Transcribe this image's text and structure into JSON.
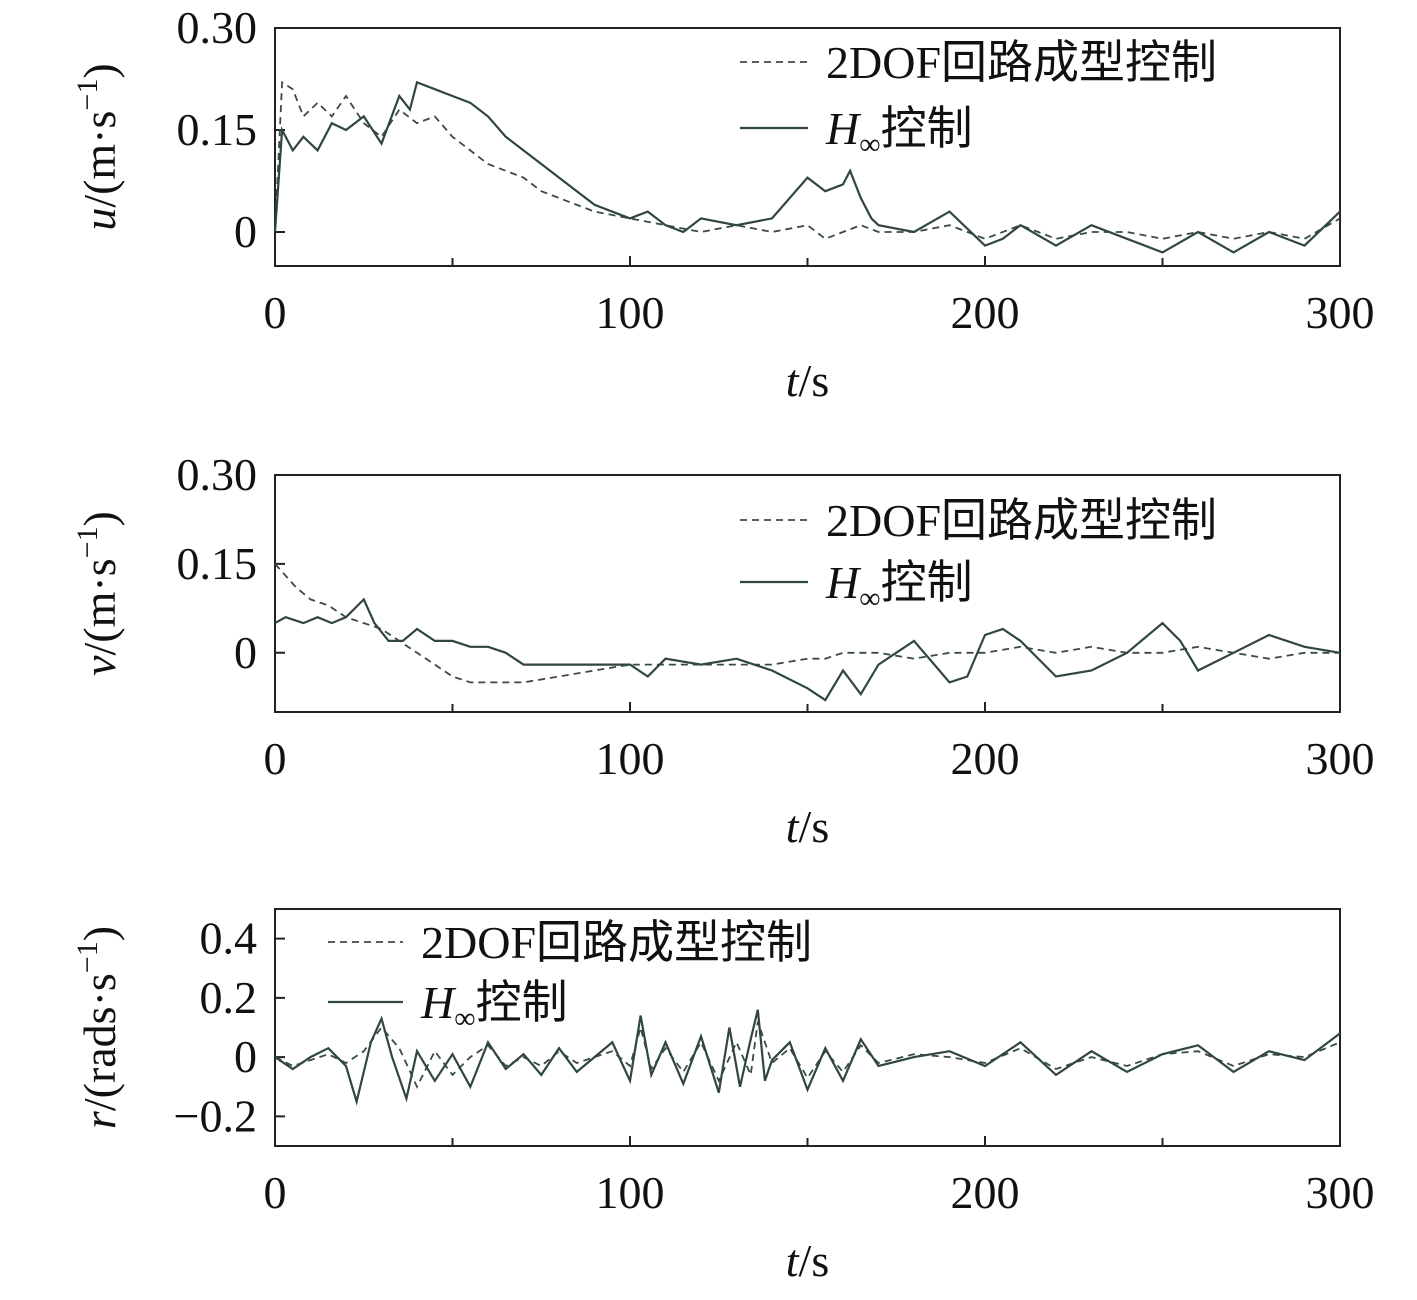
{
  "colors": {
    "series_dashed": "#3a4a48",
    "series_solid": "#2f4644",
    "axis": "#222222"
  },
  "chart_data": [
    {
      "type": "line",
      "ylabel_italic": "u",
      "ylabel_rest": "/(m·s",
      "ylabel_sup": "−1",
      "ylabel_close": ")",
      "xlabel_italic": "t",
      "xlabel_rest": "/s",
      "xlim": [
        0,
        300
      ],
      "ylim": [
        -0.05,
        0.3
      ],
      "xticks": [
        0,
        100,
        200,
        300
      ],
      "xtick_labels": [
        "0",
        "100",
        "200",
        "300"
      ],
      "yticks": [
        0,
        0.15,
        0.3
      ],
      "ytick_labels": [
        "0",
        "0.15",
        "0.30"
      ],
      "legend_position": "top-right",
      "series": [
        {
          "name": "2DOF回路成型控制",
          "style": "dashed",
          "x": [
            0,
            2,
            5,
            8,
            12,
            16,
            20,
            25,
            30,
            35,
            40,
            45,
            50,
            55,
            60,
            65,
            70,
            75,
            80,
            90,
            100,
            110,
            120,
            130,
            140,
            150,
            155,
            160,
            165,
            170,
            180,
            190,
            200,
            210,
            220,
            230,
            240,
            250,
            260,
            270,
            280,
            290,
            300
          ],
          "y": [
            0,
            0.22,
            0.21,
            0.17,
            0.19,
            0.17,
            0.2,
            0.16,
            0.14,
            0.18,
            0.16,
            0.17,
            0.14,
            0.12,
            0.1,
            0.09,
            0.08,
            0.06,
            0.05,
            0.03,
            0.02,
            0.01,
            0.0,
            0.01,
            0.0,
            0.01,
            -0.01,
            0.0,
            0.01,
            0.0,
            0.0,
            0.01,
            -0.01,
            0.01,
            -0.01,
            0.0,
            0.0,
            -0.01,
            0.0,
            -0.01,
            0.0,
            -0.01,
            0.02
          ]
        },
        {
          "name": "H∞控制",
          "style": "solid",
          "x": [
            0,
            2,
            5,
            8,
            12,
            16,
            20,
            25,
            30,
            35,
            38,
            40,
            45,
            50,
            55,
            60,
            65,
            70,
            75,
            80,
            90,
            100,
            105,
            110,
            115,
            120,
            130,
            140,
            150,
            155,
            160,
            162,
            165,
            168,
            170,
            180,
            190,
            200,
            205,
            210,
            220,
            230,
            240,
            250,
            260,
            270,
            280,
            290,
            300
          ],
          "y": [
            0,
            0.15,
            0.12,
            0.14,
            0.12,
            0.16,
            0.15,
            0.17,
            0.13,
            0.2,
            0.18,
            0.22,
            0.21,
            0.2,
            0.19,
            0.17,
            0.14,
            0.12,
            0.1,
            0.08,
            0.04,
            0.02,
            0.03,
            0.01,
            0.0,
            0.02,
            0.01,
            0.02,
            0.08,
            0.06,
            0.07,
            0.09,
            0.05,
            0.02,
            0.01,
            0.0,
            0.03,
            -0.02,
            -0.01,
            0.01,
            -0.02,
            0.01,
            -0.01,
            -0.03,
            0.0,
            -0.03,
            0.0,
            -0.02,
            0.03
          ]
        }
      ]
    },
    {
      "type": "line",
      "ylabel_italic": "v",
      "ylabel_rest": "/(m·s",
      "ylabel_sup": "−1",
      "ylabel_close": ")",
      "xlabel_italic": "t",
      "xlabel_rest": "/s",
      "xlim": [
        0,
        300
      ],
      "ylim": [
        -0.1,
        0.3
      ],
      "xticks": [
        0,
        100,
        200,
        300
      ],
      "xtick_labels": [
        "0",
        "100",
        "200",
        "300"
      ],
      "yticks": [
        0,
        0.15,
        0.3
      ],
      "ytick_labels": [
        "0",
        "0.15",
        "0.30"
      ],
      "legend_position": "top-right",
      "series": [
        {
          "name": "2DOF回路成型控制",
          "style": "dashed",
          "x": [
            0,
            3,
            6,
            10,
            15,
            20,
            25,
            30,
            35,
            40,
            45,
            50,
            55,
            60,
            65,
            70,
            80,
            90,
            100,
            110,
            120,
            130,
            140,
            150,
            155,
            160,
            170,
            180,
            190,
            200,
            210,
            220,
            230,
            240,
            250,
            260,
            270,
            280,
            290,
            300
          ],
          "y": [
            0.15,
            0.13,
            0.11,
            0.09,
            0.08,
            0.06,
            0.05,
            0.04,
            0.02,
            0.0,
            -0.02,
            -0.04,
            -0.05,
            -0.05,
            -0.05,
            -0.05,
            -0.04,
            -0.03,
            -0.02,
            -0.02,
            -0.02,
            -0.02,
            -0.02,
            -0.01,
            -0.01,
            0.0,
            0.0,
            -0.01,
            0.0,
            0.0,
            0.01,
            0.0,
            0.01,
            0.0,
            0.0,
            0.01,
            0.0,
            -0.01,
            0.0,
            0.0
          ]
        },
        {
          "name": "H∞控制",
          "style": "solid",
          "x": [
            0,
            3,
            8,
            12,
            16,
            20,
            25,
            28,
            32,
            36,
            40,
            45,
            50,
            55,
            60,
            65,
            70,
            80,
            90,
            100,
            105,
            110,
            120,
            130,
            140,
            150,
            155,
            160,
            165,
            170,
            180,
            190,
            195,
            200,
            205,
            210,
            220,
            230,
            240,
            250,
            255,
            260,
            270,
            280,
            290,
            300
          ],
          "y": [
            0.05,
            0.06,
            0.05,
            0.06,
            0.05,
            0.06,
            0.09,
            0.05,
            0.02,
            0.02,
            0.04,
            0.02,
            0.02,
            0.01,
            0.01,
            0.0,
            -0.02,
            -0.02,
            -0.02,
            -0.02,
            -0.04,
            -0.01,
            -0.02,
            -0.01,
            -0.03,
            -0.06,
            -0.08,
            -0.03,
            -0.07,
            -0.02,
            0.02,
            -0.05,
            -0.04,
            0.03,
            0.04,
            0.02,
            -0.04,
            -0.03,
            0.0,
            0.05,
            0.02,
            -0.03,
            0.0,
            0.03,
            0.01,
            0.0
          ]
        }
      ]
    },
    {
      "type": "line",
      "ylabel_italic": "r",
      "ylabel_rest": "/(rads·s",
      "ylabel_sup": "−1",
      "ylabel_close": ")",
      "xlabel_italic": "t",
      "xlabel_rest": "/s",
      "xlim": [
        0,
        300
      ],
      "ylim": [
        -0.3,
        0.5
      ],
      "xticks": [
        0,
        100,
        200,
        300
      ],
      "xtick_labels": [
        "0",
        "100",
        "200",
        "300"
      ],
      "yticks": [
        -0.2,
        0,
        0.2,
        0.4
      ],
      "ytick_labels": [
        "−0.2",
        "0",
        "0.2",
        "0.4"
      ],
      "legend_position": "top-left",
      "series": [
        {
          "name": "2DOF回路成型控制",
          "style": "dashed",
          "x": [
            0,
            5,
            10,
            15,
            20,
            25,
            30,
            35,
            40,
            45,
            50,
            55,
            60,
            65,
            70,
            75,
            80,
            85,
            90,
            95,
            100,
            103,
            106,
            110,
            115,
            120,
            125,
            130,
            134,
            136,
            140,
            145,
            150,
            155,
            160,
            165,
            170,
            180,
            190,
            200,
            210,
            220,
            230,
            240,
            250,
            260,
            270,
            280,
            290,
            300
          ],
          "y": [
            0,
            -0.03,
            -0.01,
            0.01,
            -0.02,
            0.02,
            0.1,
            0.03,
            -0.1,
            0.02,
            -0.06,
            0.0,
            0.04,
            -0.03,
            0.0,
            -0.03,
            0.02,
            -0.02,
            0.0,
            0.02,
            -0.03,
            0.1,
            -0.04,
            0.03,
            -0.05,
            0.05,
            -0.08,
            0.05,
            -0.06,
            0.12,
            -0.02,
            0.03,
            -0.07,
            0.02,
            -0.05,
            0.04,
            -0.02,
            0.01,
            0.0,
            -0.02,
            0.03,
            -0.04,
            0.0,
            -0.03,
            0.01,
            0.02,
            -0.03,
            0.01,
            0.0,
            0.05
          ]
        },
        {
          "name": "H∞控制",
          "style": "solid",
          "x": [
            0,
            5,
            10,
            15,
            20,
            23,
            27,
            30,
            33,
            37,
            40,
            45,
            50,
            55,
            60,
            65,
            70,
            75,
            80,
            85,
            90,
            95,
            100,
            103,
            106,
            110,
            115,
            120,
            125,
            128,
            131,
            134,
            136,
            138,
            140,
            145,
            150,
            155,
            160,
            165,
            170,
            180,
            190,
            200,
            210,
            220,
            230,
            240,
            250,
            260,
            270,
            280,
            290,
            300
          ],
          "y": [
            0,
            -0.04,
            0.0,
            0.03,
            -0.03,
            -0.15,
            0.05,
            0.13,
            0.0,
            -0.14,
            0.02,
            -0.08,
            0.01,
            -0.1,
            0.05,
            -0.04,
            0.01,
            -0.06,
            0.03,
            -0.05,
            0.0,
            0.05,
            -0.08,
            0.14,
            -0.06,
            0.05,
            -0.09,
            0.07,
            -0.12,
            0.1,
            -0.1,
            0.06,
            0.16,
            -0.08,
            -0.01,
            0.05,
            -0.11,
            0.03,
            -0.08,
            0.06,
            -0.03,
            0.0,
            0.02,
            -0.03,
            0.05,
            -0.06,
            0.02,
            -0.05,
            0.01,
            0.04,
            -0.05,
            0.02,
            -0.01,
            0.08
          ]
        }
      ]
    }
  ]
}
